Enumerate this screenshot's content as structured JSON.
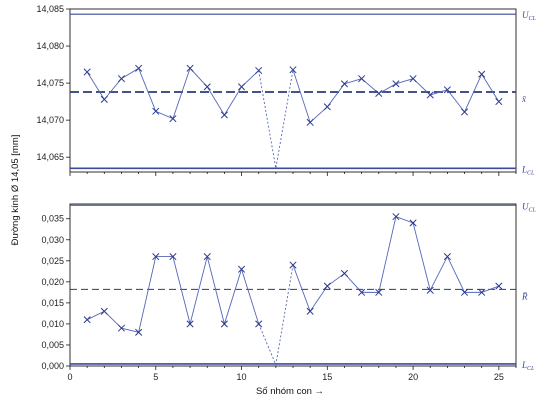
{
  "colors": {
    "frame": "#1a1a1a",
    "limit": "#3b4a9c",
    "center": "#2c3a7a",
    "series": "#5566bb",
    "marker": "#2c3a8c",
    "text": "#222222"
  },
  "chart_data": [
    {
      "type": "line",
      "name": "xbar",
      "ylim": [
        14.063,
        14.085
      ],
      "yticks": [
        14.065,
        14.07,
        14.075,
        14.08,
        14.085
      ],
      "ytick_labels": [
        "14,065",
        "14,070",
        "14,075",
        "14,080",
        "14,085"
      ],
      "xlim": [
        0,
        26
      ],
      "ucl": 14.0843,
      "center": 14.0738,
      "lcl": 14.0635,
      "limit_labels": [
        {
          "main": "U",
          "sub": "CL",
          "key": "ucl"
        },
        {
          "main": "x̄",
          "sub": "",
          "key": "center"
        },
        {
          "main": "L",
          "sub": "CL",
          "key": "lcl"
        }
      ],
      "x": [
        1,
        2,
        3,
        4,
        5,
        6,
        7,
        8,
        9,
        10,
        11,
        13,
        14,
        15,
        16,
        17,
        18,
        19,
        20,
        21,
        22,
        23,
        24,
        25
      ],
      "values": [
        14.0765,
        14.0728,
        14.0756,
        14.077,
        14.0712,
        14.0702,
        14.077,
        14.0745,
        14.0707,
        14.0745,
        14.0767,
        14.0768,
        14.0697,
        14.0718,
        14.0749,
        14.0756,
        14.0736,
        14.0749,
        14.0756,
        14.0734,
        14.0741,
        14.0711,
        14.0762,
        14.0725
      ],
      "gap": {
        "from": [
          11,
          14.0767
        ],
        "to": [
          13,
          14.0768
        ],
        "via": [
          12,
          14.0635
        ]
      }
    },
    {
      "type": "line",
      "name": "range",
      "ylim": [
        0,
        0.0385
      ],
      "yticks": [
        0,
        0.005,
        0.01,
        0.015,
        0.02,
        0.025,
        0.03,
        0.035
      ],
      "ytick_labels": [
        "0,000",
        "0,005",
        "0,010",
        "0,015",
        "0,020",
        "0,025",
        "0,030",
        "0,035"
      ],
      "xlim": [
        0,
        26
      ],
      "xticks": [
        0,
        5,
        10,
        15,
        20,
        25
      ],
      "xtick_labels": [
        "0",
        "5",
        "10",
        "15",
        "20",
        "25"
      ],
      "ucl": 0.0382,
      "center": 0.0182,
      "lcl": 0.0005,
      "limit_labels": [
        {
          "main": "U",
          "sub": "CL",
          "key": "ucl"
        },
        {
          "main": "R̄",
          "sub": "",
          "key": "center"
        },
        {
          "main": "L",
          "sub": "CL",
          "key": "lcl"
        }
      ],
      "x": [
        1,
        2,
        3,
        4,
        5,
        6,
        7,
        8,
        9,
        10,
        11,
        13,
        14,
        15,
        16,
        17,
        18,
        19,
        20,
        21,
        22,
        23,
        24,
        25
      ],
      "values": [
        0.011,
        0.013,
        0.009,
        0.008,
        0.026,
        0.026,
        0.01,
        0.026,
        0.01,
        0.023,
        0.01,
        0.024,
        0.013,
        0.019,
        0.022,
        0.0175,
        0.0175,
        0.0355,
        0.034,
        0.018,
        0.026,
        0.0175,
        0.0175,
        0.019
      ],
      "gap": {
        "from": [
          11,
          0.01
        ],
        "to": [
          13,
          0.024
        ],
        "via": [
          12,
          0.0003
        ]
      }
    }
  ],
  "labels": {
    "ylabel": "Đường kính Ø 14,05 [mm]",
    "xlabel": "Số nhóm con →"
  }
}
